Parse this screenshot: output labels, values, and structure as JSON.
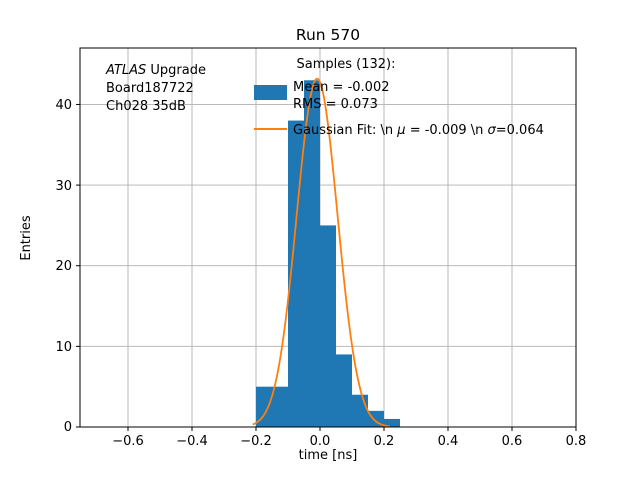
{
  "chart_data": {
    "type": "bar",
    "title": "Run 570",
    "xlabel": "time [ns]",
    "ylabel": "Entries",
    "xlim": [
      -0.75,
      0.8
    ],
    "ylim": [
      0,
      47
    ],
    "xticks": [
      -0.6,
      -0.4,
      -0.2,
      0.0,
      0.2,
      0.4,
      0.6,
      0.8
    ],
    "xtick_labels": [
      "−0.6",
      "−0.4",
      "−0.2",
      "0.0",
      "0.2",
      "0.4",
      "0.6",
      "0.8"
    ],
    "yticks": [
      0,
      10,
      20,
      30,
      40
    ],
    "ytick_labels": [
      "0",
      "10",
      "20",
      "30",
      "40"
    ],
    "grid": true,
    "grid_color": "#b0b0b0",
    "bar_color": "#1f77b4",
    "fit_color": "#ff7f0e",
    "bin_edges": [
      -0.2,
      -0.15,
      -0.1,
      -0.05,
      0.0,
      0.05,
      0.1,
      0.15,
      0.2,
      0.25
    ],
    "counts": [
      5,
      5,
      38,
      43,
      25,
      9,
      4,
      2,
      1
    ],
    "samples": 132,
    "hist_mean": -0.002,
    "hist_rms": 0.073,
    "fit": {
      "type": "gaussian",
      "mu": -0.009,
      "sigma": 0.064,
      "amplitude": 43.2,
      "range": [
        -0.21,
        0.22
      ]
    }
  },
  "annotation": {
    "line1_italic": "ATLAS",
    "line1_rest": " Upgrade",
    "line2": "Board187722",
    "line3": "Ch028 35dB"
  },
  "legend": {
    "title": "Samples (132):",
    "hist_label_line1": "Mean = -0.002",
    "hist_label_line2": "RMS = 0.073",
    "gauss_prefix": "Gaussian Fit: \\n ",
    "gauss_mu": "μ",
    "gauss_mid": " = -0.009 \\n ",
    "gauss_sigma": "σ",
    "gauss_suffix": "=0.064"
  }
}
